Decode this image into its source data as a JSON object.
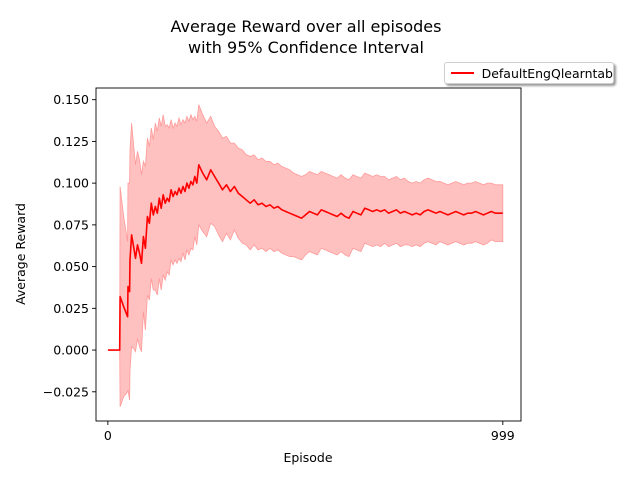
{
  "chart_data": {
    "type": "line",
    "title_line1": "Average Reward over all episodes",
    "title_line2": "with 95% Confidence Interval",
    "xlabel": "Episode",
    "ylabel": "Average Reward",
    "xlim": [
      -30,
      1045
    ],
    "ylim": [
      -0.0425,
      0.157
    ],
    "xticks": [
      0,
      999
    ],
    "xtick_labels": [
      "0",
      "999"
    ],
    "yticks": [
      -0.025,
      0.0,
      0.025,
      0.05,
      0.075,
      0.1,
      0.125,
      0.15
    ],
    "ytick_labels": [
      "−0.025",
      "0.000",
      "0.025",
      "0.050",
      "0.075",
      "0.100",
      "0.125",
      "0.150"
    ],
    "grid": false,
    "legend_position": "outside-top-right",
    "series": [
      {
        "name": "DefaultEngQlearntab",
        "color": "#ff0000",
        "ci_color": "#ff9a9a",
        "x": [
          0,
          20,
          30,
          31,
          40,
          50,
          51,
          55,
          56,
          60,
          65,
          70,
          75,
          80,
          85,
          90,
          95,
          100,
          105,
          110,
          115,
          120,
          125,
          130,
          135,
          140,
          145,
          150,
          155,
          160,
          165,
          170,
          175,
          180,
          185,
          190,
          195,
          200,
          205,
          210,
          215,
          220,
          225,
          230,
          240,
          250,
          260,
          270,
          280,
          290,
          300,
          310,
          320,
          330,
          340,
          350,
          360,
          370,
          380,
          390,
          400,
          410,
          420,
          430,
          440,
          450,
          460,
          470,
          480,
          490,
          500,
          510,
          520,
          530,
          540,
          550,
          560,
          570,
          580,
          590,
          600,
          610,
          620,
          630,
          640,
          650,
          660,
          670,
          680,
          690,
          700,
          710,
          720,
          730,
          740,
          750,
          760,
          770,
          780,
          790,
          800,
          810,
          820,
          830,
          840,
          850,
          860,
          870,
          880,
          890,
          900,
          910,
          920,
          930,
          940,
          950,
          960,
          970,
          980,
          990,
          999
        ],
        "mean": [
          0.0,
          0.0,
          0.0,
          0.032,
          0.026,
          0.02,
          0.038,
          0.035,
          0.054,
          0.069,
          0.062,
          0.055,
          0.063,
          0.058,
          0.052,
          0.068,
          0.061,
          0.08,
          0.076,
          0.088,
          0.081,
          0.086,
          0.082,
          0.091,
          0.085,
          0.093,
          0.088,
          0.091,
          0.089,
          0.096,
          0.092,
          0.095,
          0.093,
          0.097,
          0.094,
          0.098,
          0.095,
          0.1,
          0.097,
          0.101,
          0.099,
          0.104,
          0.1,
          0.111,
          0.106,
          0.102,
          0.108,
          0.104,
          0.1,
          0.096,
          0.099,
          0.095,
          0.098,
          0.094,
          0.092,
          0.09,
          0.088,
          0.09,
          0.087,
          0.088,
          0.086,
          0.087,
          0.085,
          0.086,
          0.084,
          0.083,
          0.082,
          0.081,
          0.08,
          0.079,
          0.081,
          0.083,
          0.082,
          0.081,
          0.084,
          0.083,
          0.082,
          0.081,
          0.08,
          0.082,
          0.08,
          0.079,
          0.083,
          0.082,
          0.081,
          0.085,
          0.084,
          0.083,
          0.084,
          0.083,
          0.084,
          0.082,
          0.083,
          0.084,
          0.082,
          0.083,
          0.082,
          0.081,
          0.082,
          0.081,
          0.083,
          0.084,
          0.083,
          0.082,
          0.083,
          0.082,
          0.081,
          0.082,
          0.083,
          0.082,
          0.081,
          0.082,
          0.082,
          0.083,
          0.082,
          0.081,
          0.082,
          0.083,
          0.082,
          0.082,
          0.082
        ],
        "upper": [
          0.0,
          0.0,
          0.0,
          0.098,
          0.08,
          0.065,
          0.1,
          0.1,
          0.12,
          0.136,
          0.123,
          0.111,
          0.119,
          0.114,
          0.105,
          0.113,
          0.11,
          0.127,
          0.122,
          0.133,
          0.126,
          0.136,
          0.131,
          0.139,
          0.134,
          0.141,
          0.134,
          0.135,
          0.133,
          0.138,
          0.133,
          0.136,
          0.134,
          0.139,
          0.135,
          0.138,
          0.136,
          0.14,
          0.137,
          0.141,
          0.138,
          0.14,
          0.137,
          0.147,
          0.141,
          0.136,
          0.14,
          0.134,
          0.131,
          0.127,
          0.128,
          0.124,
          0.124,
          0.121,
          0.12,
          0.117,
          0.116,
          0.117,
          0.114,
          0.115,
          0.113,
          0.113,
          0.111,
          0.112,
          0.11,
          0.109,
          0.108,
          0.106,
          0.105,
          0.104,
          0.105,
          0.107,
          0.106,
          0.105,
          0.107,
          0.106,
          0.105,
          0.104,
          0.103,
          0.105,
          0.103,
          0.102,
          0.105,
          0.104,
          0.103,
          0.106,
          0.105,
          0.104,
          0.105,
          0.104,
          0.104,
          0.102,
          0.103,
          0.104,
          0.102,
          0.103,
          0.101,
          0.1,
          0.101,
          0.1,
          0.102,
          0.103,
          0.102,
          0.101,
          0.101,
          0.1,
          0.099,
          0.1,
          0.101,
          0.1,
          0.099,
          0.1,
          0.1,
          0.101,
          0.1,
          0.099,
          0.1,
          0.1,
          0.099,
          0.099,
          0.099
        ],
        "lower": [
          0.0,
          0.0,
          0.0,
          -0.034,
          -0.028,
          -0.025,
          -0.024,
          -0.03,
          -0.012,
          0.002,
          0.001,
          -0.001,
          0.007,
          0.002,
          -0.001,
          0.023,
          0.012,
          0.033,
          0.03,
          0.043,
          0.036,
          0.036,
          0.033,
          0.043,
          0.036,
          0.045,
          0.042,
          0.047,
          0.045,
          0.054,
          0.051,
          0.054,
          0.052,
          0.055,
          0.053,
          0.058,
          0.054,
          0.06,
          0.057,
          0.061,
          0.06,
          0.068,
          0.063,
          0.075,
          0.071,
          0.068,
          0.076,
          0.074,
          0.069,
          0.065,
          0.07,
          0.066,
          0.072,
          0.067,
          0.064,
          0.063,
          0.06,
          0.063,
          0.06,
          0.061,
          0.059,
          0.061,
          0.059,
          0.06,
          0.058,
          0.057,
          0.056,
          0.056,
          0.055,
          0.054,
          0.057,
          0.059,
          0.058,
          0.057,
          0.061,
          0.06,
          0.059,
          0.058,
          0.057,
          0.059,
          0.057,
          0.056,
          0.061,
          0.06,
          0.059,
          0.064,
          0.063,
          0.062,
          0.063,
          0.062,
          0.064,
          0.062,
          0.063,
          0.064,
          0.062,
          0.063,
          0.063,
          0.062,
          0.063,
          0.062,
          0.064,
          0.065,
          0.064,
          0.063,
          0.065,
          0.064,
          0.063,
          0.064,
          0.065,
          0.064,
          0.063,
          0.064,
          0.064,
          0.065,
          0.064,
          0.063,
          0.064,
          0.066,
          0.065,
          0.065,
          0.065
        ]
      }
    ]
  }
}
